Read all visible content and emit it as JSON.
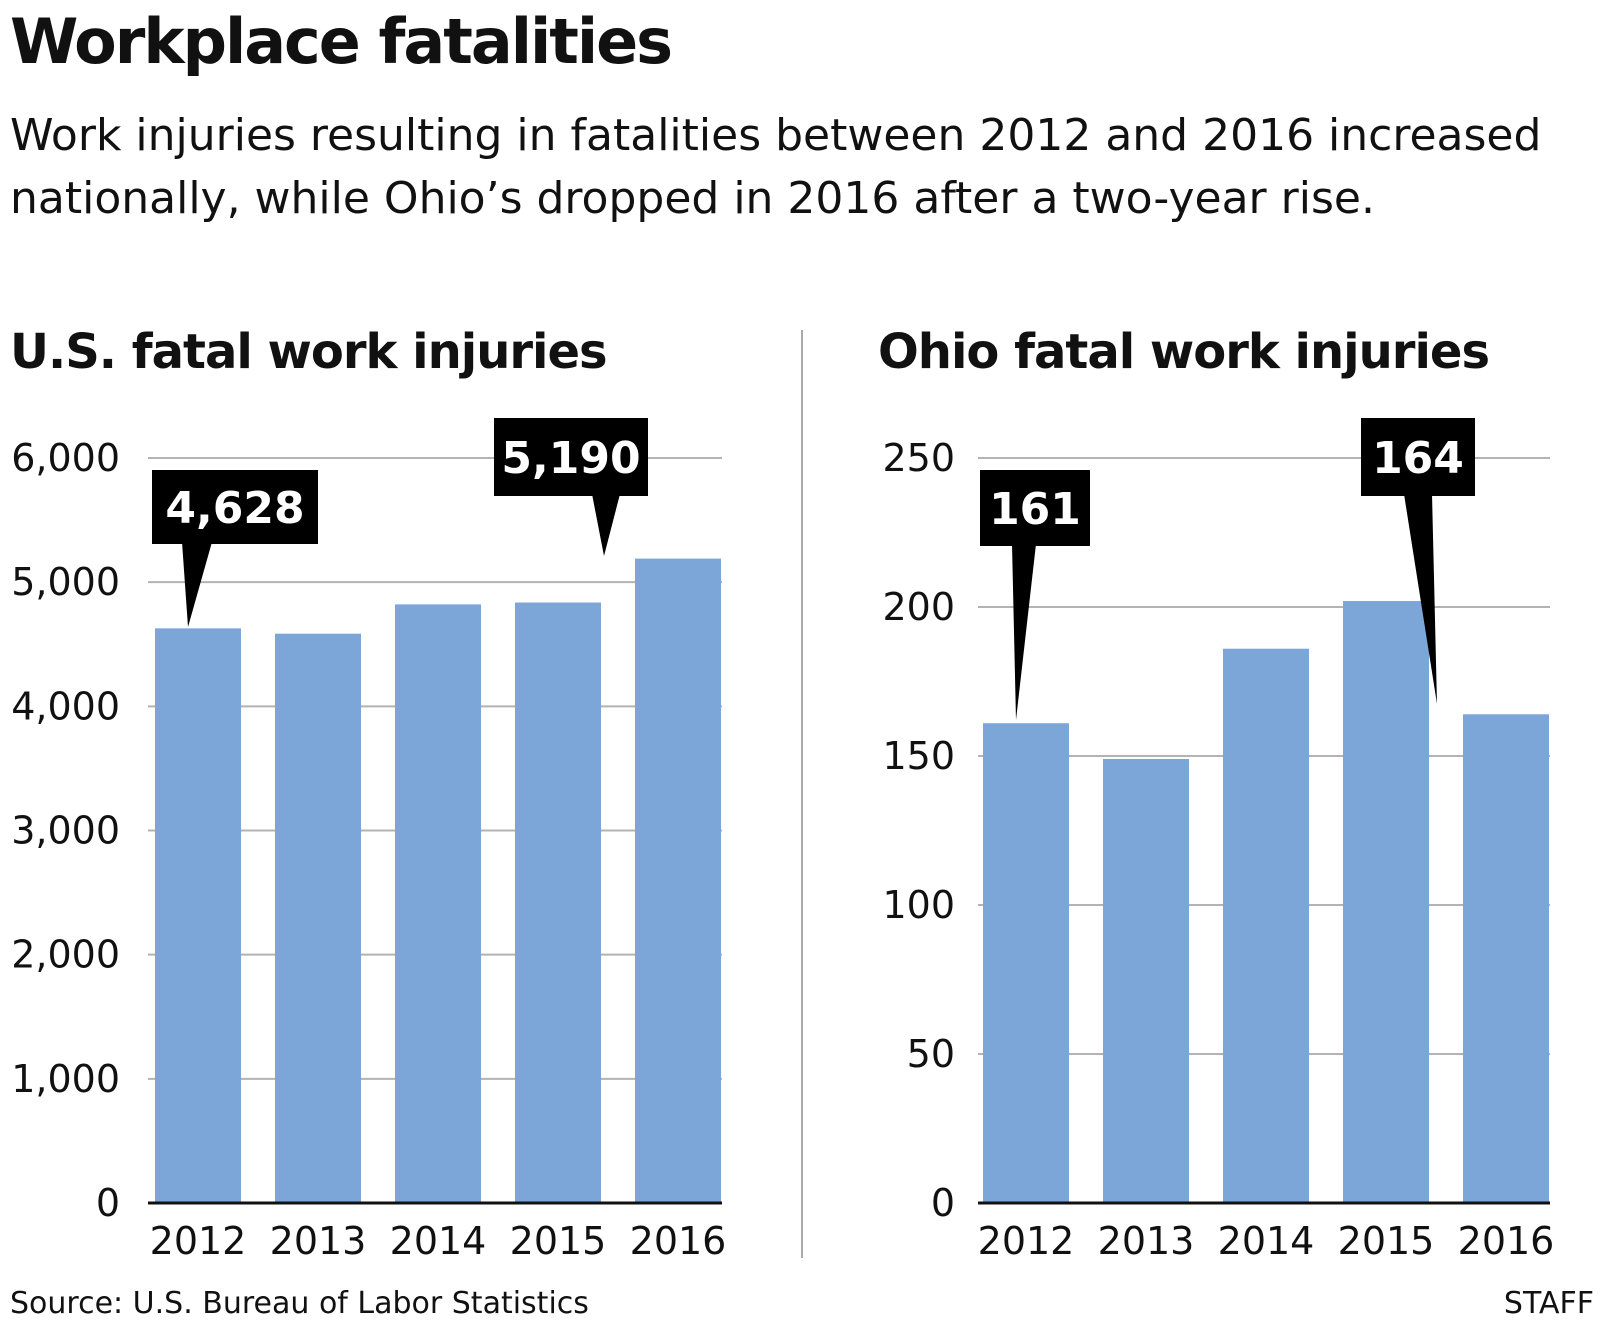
{
  "header": {
    "title": "Workplace fatalities",
    "subtitle": "Work injuries resulting in fatalities between 2012 and 2016 increased nationally, while Ohio’s dropped in 2016 after a two-year rise."
  },
  "footer": {
    "source": "Source: U.S. Bureau of Labor Statistics",
    "credit": "STAFF"
  },
  "colors": {
    "bar": "#7ba6d7",
    "grid": "#b3b3b3",
    "axis": "#111111",
    "callout_bg": "#000000",
    "callout_text": "#ffffff"
  },
  "chart_data": [
    {
      "type": "bar",
      "title": "U.S. fatal work injuries",
      "categories": [
        "2012",
        "2013",
        "2014",
        "2015",
        "2016"
      ],
      "values": [
        4628,
        4585,
        4821,
        4836,
        5190
      ],
      "ylim": [
        0,
        6000
      ],
      "yticks": [
        0,
        1000,
        2000,
        3000,
        4000,
        5000,
        6000
      ],
      "ytick_labels": [
        "0",
        "1,000",
        "2,000",
        "3,000",
        "4,000",
        "5,000",
        "6,000"
      ],
      "grid": true,
      "callouts": [
        {
          "label": "4,628",
          "category": "2012"
        },
        {
          "label": "5,190",
          "category": "2016"
        }
      ]
    },
    {
      "type": "bar",
      "title": "Ohio fatal work injuries",
      "categories": [
        "2012",
        "2013",
        "2014",
        "2015",
        "2016"
      ],
      "values": [
        161,
        149,
        186,
        202,
        164
      ],
      "ylim": [
        0,
        250
      ],
      "yticks": [
        0,
        50,
        100,
        150,
        200,
        250
      ],
      "ytick_labels": [
        "0",
        "50",
        "100",
        "150",
        "200",
        "250"
      ],
      "grid": true,
      "callouts": [
        {
          "label": "161",
          "category": "2012"
        },
        {
          "label": "164",
          "category": "2016"
        }
      ]
    }
  ]
}
